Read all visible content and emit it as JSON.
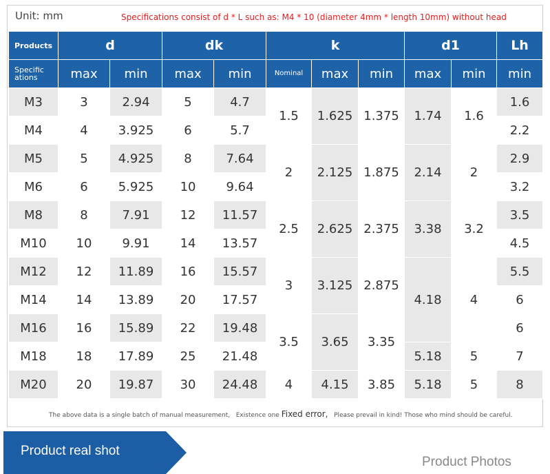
{
  "unit_label": "Unit: mm",
  "spec_note": "Specifications consist of d * L such as: M4 * 10 (diameter 4mm * length 10mm) without head",
  "header": {
    "products": "Products",
    "specifications": "Specific ations",
    "groups": {
      "d": "d",
      "dk": "dk",
      "k": "k",
      "d1": "d1",
      "lh": "Lh"
    },
    "sub": {
      "max": "max",
      "min": "min",
      "nominal": "Nominal"
    }
  },
  "rows": [
    {
      "size": "M3",
      "d_max": "3",
      "d_min": "2.94",
      "dk_max": "5",
      "dk_min": "4.7",
      "lh": "1.6"
    },
    {
      "size": "M4",
      "d_max": "4",
      "d_min": "3.925",
      "dk_max": "6",
      "dk_min": "5.7",
      "lh": "2.2"
    },
    {
      "size": "M5",
      "d_max": "5",
      "d_min": "4.925",
      "dk_max": "8",
      "dk_min": "7.64",
      "lh": "2.9"
    },
    {
      "size": "M6",
      "d_max": "6",
      "d_min": "5.925",
      "dk_max": "10",
      "dk_min": "9.64",
      "lh": "3.2"
    },
    {
      "size": "M8",
      "d_max": "8",
      "d_min": "7.91",
      "dk_max": "12",
      "dk_min": "11.57",
      "lh": "3.5"
    },
    {
      "size": "M10",
      "d_max": "10",
      "d_min": "9.91",
      "dk_max": "14",
      "dk_min": "13.57",
      "lh": "4.5"
    },
    {
      "size": "M12",
      "d_max": "12",
      "d_min": "11.89",
      "dk_max": "16",
      "dk_min": "15.57",
      "lh": "5.5"
    },
    {
      "size": "M14",
      "d_max": "14",
      "d_min": "13.89",
      "dk_max": "20",
      "dk_min": "17.57",
      "lh": "6"
    },
    {
      "size": "M16",
      "d_max": "16",
      "d_min": "15.89",
      "dk_max": "22",
      "dk_min": "19.48",
      "lh": "6"
    },
    {
      "size": "M18",
      "d_max": "18",
      "d_min": "17.89",
      "dk_max": "25",
      "dk_min": "21.48",
      "lh": "7"
    },
    {
      "size": "M20",
      "d_max": "20",
      "d_min": "19.87",
      "dk_max": "30",
      "dk_min": "24.48",
      "lh": "8"
    }
  ],
  "k_groups": [
    {
      "nominal": "1.5",
      "max": "1.625",
      "min": "1.375"
    },
    {
      "nominal": "2",
      "max": "2.125",
      "min": "1.875"
    },
    {
      "nominal": "2.5",
      "max": "2.625",
      "min": "2.375"
    },
    {
      "nominal": "3",
      "max": "3.125",
      "min": "2.875"
    },
    {
      "nominal": "3.5",
      "max": "3.65",
      "min": "3.35"
    },
    {
      "nominal": "4",
      "max": "4.15",
      "min": "3.85"
    }
  ],
  "d1_groups": [
    {
      "max": "1.74",
      "min": "1.6"
    },
    {
      "max": "2.14",
      "min": "2"
    },
    {
      "max": "3.38",
      "min": "3.2"
    },
    {
      "max": "4.18",
      "min": "4"
    },
    {
      "max": "5.18",
      "min": "5"
    },
    {
      "max": "5.18",
      "min": "5"
    }
  ],
  "footer": {
    "part1": "The above data is a single batch of manual measurement,",
    "part2": "Existence one",
    "part3": "Fixed error,",
    "part4": "Please prevail in kind! Those who mind should be careful."
  },
  "banner_label": "Product real shot",
  "photos_label": "Product Photos",
  "colors": {
    "header_blue": "#1e63a8",
    "banner_blue": "#1b5ea6",
    "note_red": "#e02020",
    "cell_gray": "#e8e8e8"
  }
}
